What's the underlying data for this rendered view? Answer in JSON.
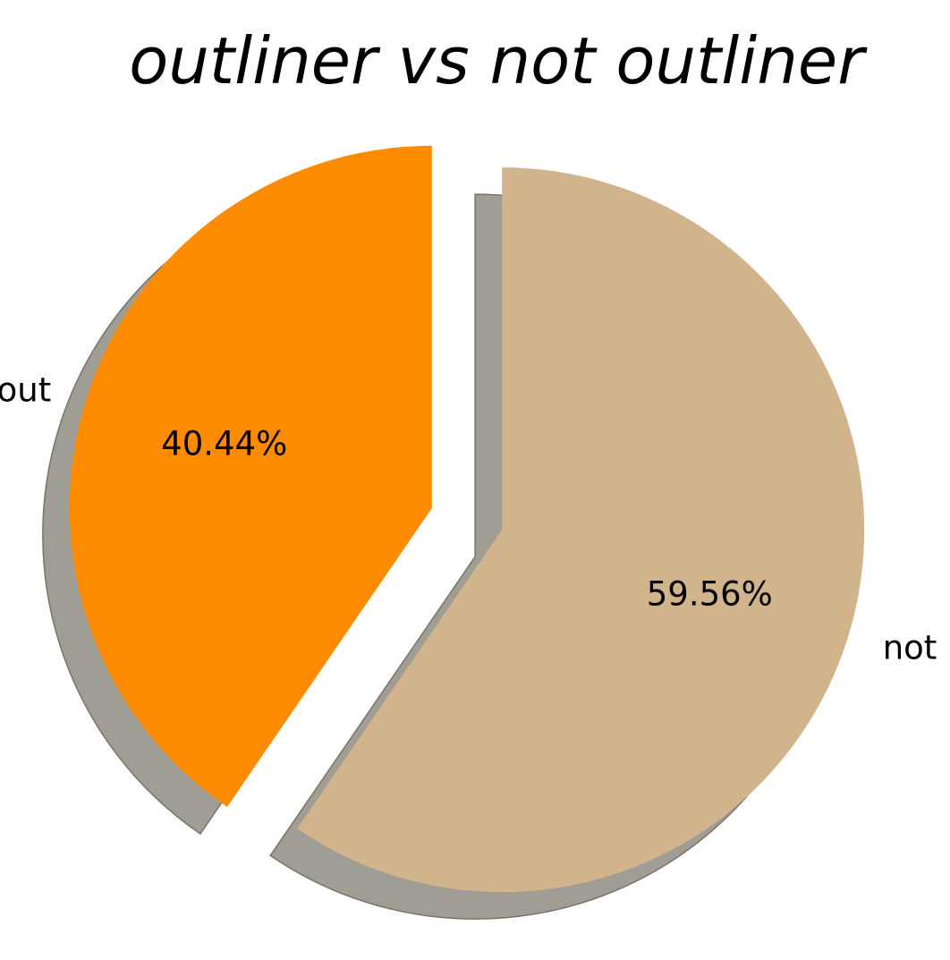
{
  "chart_data": {
    "type": "pie",
    "title": "outliner vs not outliner",
    "slices": [
      {
        "label": "out",
        "value": 40.44,
        "pct_label": "40.44%",
        "color": "#FF8C00",
        "exploded": true
      },
      {
        "label": "not",
        "value": 59.56,
        "pct_label": "59.56%",
        "color": "#D2B48C",
        "exploded": true
      }
    ],
    "start_angle_deg": 90,
    "direction": "counterclockwise",
    "shadow": true,
    "shadow_color": "#a09d94"
  }
}
